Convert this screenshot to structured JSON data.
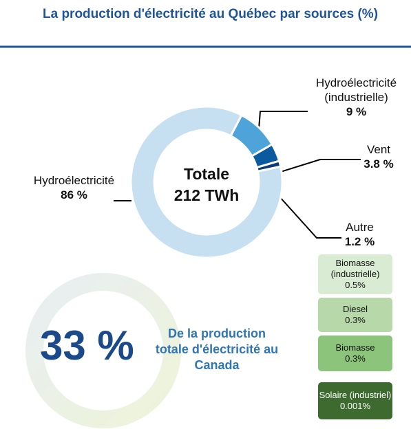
{
  "chart_data": {
    "type": "pie",
    "donut": true,
    "title": "La production d'électricité au Québec par sources (%)",
    "center_text": [
      "Totale",
      "212 TWh"
    ],
    "categories": [
      "Hydroélectricité",
      "Hydroélectricité (industrielle)",
      "Vent",
      "Autre"
    ],
    "values": [
      86,
      9,
      3.8,
      1.2
    ],
    "value_labels": [
      "86 %",
      "9 %",
      "3.8 %",
      "1.2 %"
    ],
    "colors": [
      "#c6e0f2",
      "#4ea3d9",
      "#0b5aa0",
      "#0d3b78"
    ]
  },
  "autre_breakdown": {
    "categories": [
      "Biomasse (industrielle)",
      "Diesel",
      "Biomasse",
      "Solaire (industriel)"
    ],
    "values": [
      0.5,
      0.3,
      0.3,
      0.001
    ],
    "value_labels": [
      "0.5%",
      "0.3%",
      "0.3%",
      "0.001%"
    ],
    "colors": [
      "#d9ebd3",
      "#b7d9aa",
      "#8dc47b",
      "#3d6b2f"
    ]
  },
  "highlight": {
    "value_label": "33 %",
    "text": "De la production totale d'électricité au Canada"
  }
}
